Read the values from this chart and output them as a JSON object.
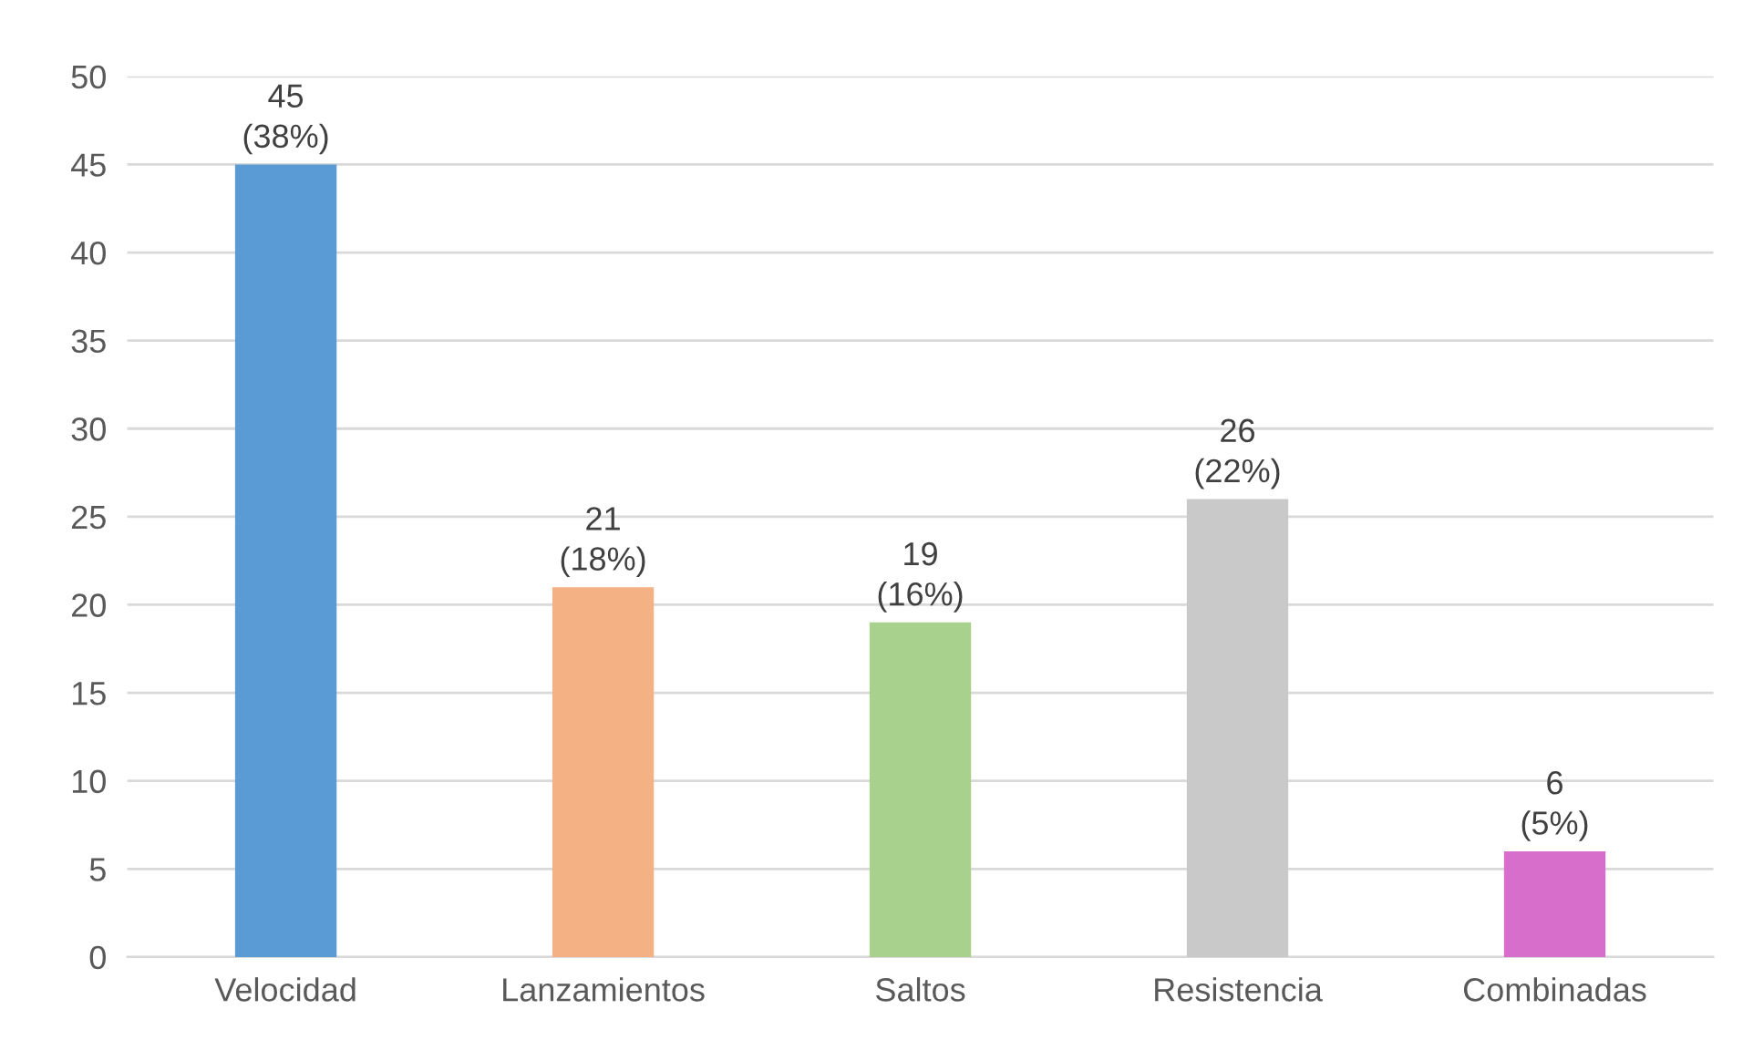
{
  "chart_data": {
    "type": "bar",
    "categories": [
      "Velocidad",
      "Lanzamientos",
      "Saltos",
      "Resistencia",
      "Combinadas"
    ],
    "values": [
      45,
      21,
      19,
      26,
      6
    ],
    "colors": [
      "#5b9bd5",
      "#f4b183",
      "#a9d18e",
      "#c9c9c9",
      "#d86ecc"
    ],
    "value_labels": [
      "45\n(38%)",
      "21\n(18%)",
      "19\n(16%)",
      "26\n(22%)",
      "6\n(5%)"
    ],
    "ylim": [
      0,
      50
    ],
    "yticks": [
      0,
      5,
      10,
      15,
      20,
      25,
      30,
      35,
      40,
      45,
      50
    ],
    "grid": "y",
    "legend": false
  }
}
